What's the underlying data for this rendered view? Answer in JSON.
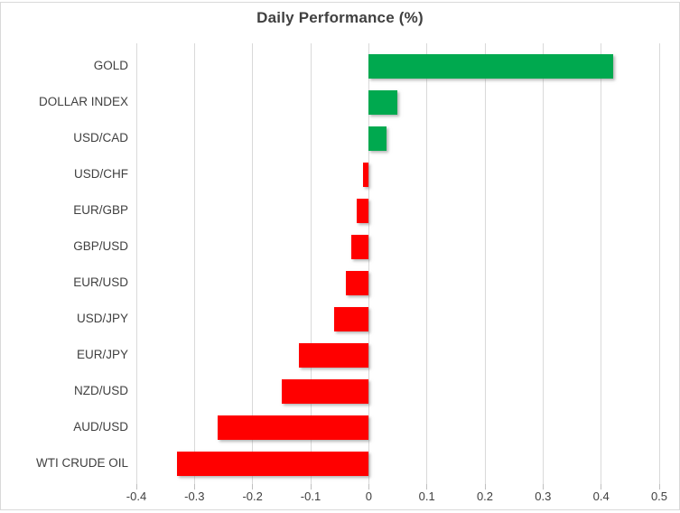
{
  "title": "Daily Performance (%)",
  "colors": {
    "positive": "#00a94f",
    "negative": "#ff0000",
    "gridline": "#d9d9d9",
    "axis_tick": "#bfbfbf",
    "text": "#404040",
    "border": "#d9d9d9",
    "background": "#ffffff"
  },
  "chart_data": {
    "type": "bar",
    "orientation": "horizontal",
    "title": "Daily Performance (%)",
    "categories": [
      "GOLD",
      "DOLLAR INDEX",
      "USD/CAD",
      "USD/CHF",
      "EUR/GBP",
      "GBP/USD",
      "EUR/USD",
      "USD/JPY",
      "EUR/JPY",
      "NZD/USD",
      "AUD/USD",
      "WTI CRUDE OIL"
    ],
    "values": [
      0.42,
      0.05,
      0.03,
      -0.01,
      -0.02,
      -0.03,
      -0.04,
      -0.06,
      -0.12,
      -0.15,
      -0.26,
      -0.33
    ],
    "xlabel": "",
    "ylabel": "",
    "xlim": [
      -0.4,
      0.5
    ],
    "xticks": [
      -0.4,
      -0.3,
      -0.2,
      -0.1,
      0,
      0.1,
      0.2,
      0.3,
      0.4,
      0.5
    ],
    "xtick_labels": [
      "-0.4",
      "-0.3",
      "-0.2",
      "-0.1",
      "0",
      "0.1",
      "0.2",
      "0.3",
      "0.4",
      "0.5"
    ],
    "grid": true,
    "legend": false,
    "positive_color": "#00a94f",
    "negative_color": "#ff0000"
  }
}
